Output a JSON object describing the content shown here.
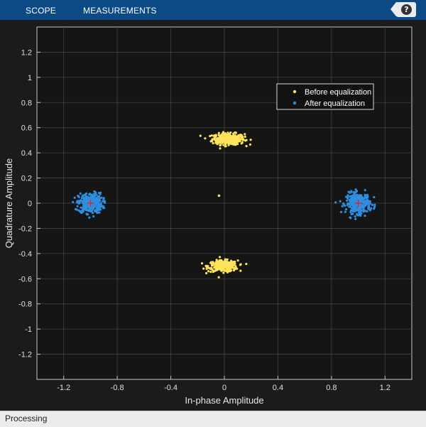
{
  "toolbar": {
    "tabs": [
      {
        "label": "SCOPE"
      },
      {
        "label": "MEASUREMENTS"
      }
    ],
    "help_label": "?",
    "collapse_icon": "chevron-up-icon"
  },
  "status": {
    "text": "Processing"
  },
  "colors": {
    "toolbar": "#0b4a85",
    "background": "#1b1b1b",
    "axes_background": "#151515",
    "before": "#ffe35a",
    "after": "#2f8ee0",
    "reference": "#e8202a"
  },
  "chart_data": {
    "type": "scatter",
    "xlabel": "In-phase Amplitude",
    "ylabel": "Quadrature Amplitude",
    "xlim": [
      -1.4,
      1.4
    ],
    "ylim": [
      -1.4,
      1.4
    ],
    "xticks": [
      -1.2,
      -0.8,
      -0.4,
      0,
      0.4,
      0.8,
      1.2
    ],
    "xtick_labels": [
      "-1.2",
      "-0.8",
      "-0.4",
      "0",
      "0.4",
      "0.8",
      "1.2"
    ],
    "yticks": [
      1.2,
      1,
      0.8,
      0.6,
      0.4,
      0.2,
      0,
      -0.2,
      -0.4,
      -0.6,
      -0.8,
      -1,
      -1.2
    ],
    "ytick_labels": [
      "1.2",
      "1",
      "0.8",
      "0.6",
      "0.4",
      "0.2",
      "0",
      "-0.2",
      "-0.4",
      "-0.6",
      "-0.8",
      "-1",
      "-1.2"
    ],
    "grid": true,
    "legend_position": "top-right",
    "series": [
      {
        "name": "Before equalization",
        "color": "#ffe35a",
        "clusters": [
          {
            "center": [
              0.03,
              0.51
            ],
            "spread": [
              0.06,
              0.022
            ]
          },
          {
            "center": [
              -0.01,
              -0.5
            ],
            "spread": [
              0.055,
              0.022
            ]
          }
        ],
        "points": [
          [
            -0.04,
            0.06
          ]
        ]
      },
      {
        "name": "After equalization",
        "color": "#2f8ee0",
        "clusters": [
          {
            "center": [
              -1.0,
              0.0
            ],
            "spread": [
              0.045,
              0.04
            ]
          },
          {
            "center": [
              1.0,
              0.0
            ],
            "spread": [
              0.045,
              0.04
            ]
          }
        ]
      }
    ],
    "reference_points": [
      [
        -1.0,
        0.0
      ],
      [
        1.0,
        0.0
      ]
    ]
  }
}
